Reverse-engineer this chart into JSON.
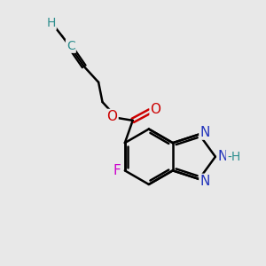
{
  "background_color": "#e8e8e8",
  "atom_colors": {
    "C": "#000000",
    "H": "#2f8f8f",
    "O": "#cc0000",
    "N": "#2233bb",
    "F": "#cc00cc"
  },
  "bond_color": "#000000",
  "bond_width": 1.8,
  "font_size": 11
}
